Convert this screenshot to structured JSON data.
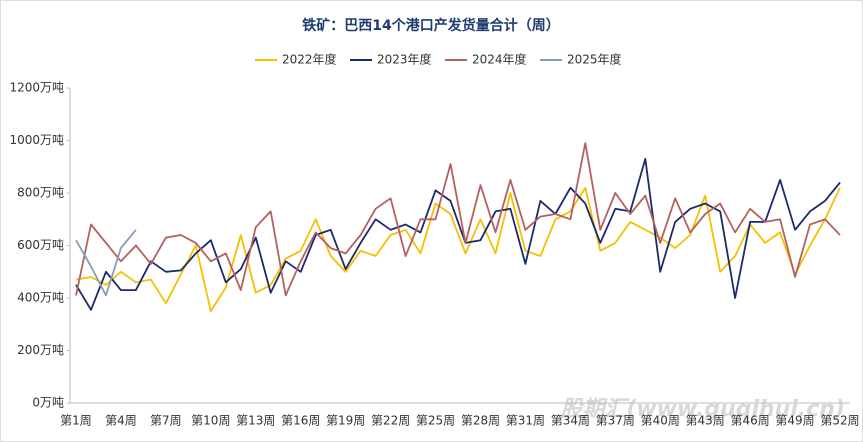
{
  "chart_data": {
    "type": "line",
    "title": "铁矿：巴西14个港口产发货量合计（周）",
    "categories": [
      "第1周",
      null,
      null,
      "第4周",
      null,
      null,
      "第7周",
      null,
      null,
      "第10周",
      null,
      null,
      "第13周",
      null,
      null,
      "第16周",
      null,
      null,
      "第19周",
      null,
      null,
      "第22周",
      null,
      null,
      "第25周",
      null,
      null,
      "第28周",
      null,
      null,
      "第31周",
      null,
      null,
      "第34周",
      null,
      null,
      "第37周",
      null,
      null,
      "第40周",
      null,
      null,
      "第43周",
      null,
      null,
      "第46周",
      null,
      null,
      "第49周",
      null,
      null,
      "第52周"
    ],
    "series": [
      {
        "name": "2022年度",
        "color": "#f5c000",
        "values": [
          470,
          480,
          450,
          500,
          460,
          470,
          380,
          490,
          600,
          350,
          440,
          640,
          420,
          450,
          550,
          580,
          700,
          560,
          500,
          580,
          560,
          640,
          660,
          570,
          760,
          720,
          570,
          700,
          570,
          800,
          580,
          560,
          700,
          730,
          820,
          580,
          610,
          690,
          660,
          630,
          590,
          640,
          790,
          500,
          560,
          680,
          610,
          650,
          490,
          600,
          700,
          820
        ]
      },
      {
        "name": "2023年度",
        "color": "#1a2a6c",
        "values": [
          450,
          355,
          500,
          430,
          430,
          540,
          500,
          505,
          570,
          620,
          460,
          510,
          630,
          420,
          540,
          500,
          640,
          660,
          510,
          610,
          700,
          660,
          680,
          650,
          810,
          770,
          610,
          620,
          730,
          740,
          530,
          770,
          720,
          820,
          760,
          610,
          740,
          730,
          930,
          500,
          690,
          740,
          760,
          730,
          400,
          690,
          690,
          850,
          660,
          730,
          770,
          840
        ]
      },
      {
        "name": "2024年度",
        "color": "#b5605e",
        "values": [
          410,
          680,
          610,
          540,
          600,
          530,
          630,
          640,
          610,
          540,
          570,
          430,
          670,
          730,
          410,
          540,
          650,
          590,
          570,
          640,
          740,
          780,
          560,
          700,
          700,
          910,
          610,
          830,
          650,
          850,
          660,
          710,
          720,
          700,
          990,
          660,
          800,
          720,
          790,
          610,
          780,
          650,
          720,
          760,
          650,
          740,
          690,
          700,
          480,
          680,
          700,
          640
        ]
      },
      {
        "name": "2025年度",
        "color": "#8a9bb8",
        "values": [
          620,
          520,
          410,
          590,
          660,
          null,
          null,
          null,
          null,
          null,
          null,
          null,
          null,
          null,
          null,
          null,
          null,
          null,
          null,
          null,
          null,
          null,
          null,
          null,
          null,
          null,
          null,
          null,
          null,
          null,
          null,
          null,
          null,
          null,
          null,
          null,
          null,
          null,
          null,
          null,
          null,
          null,
          null,
          null,
          null,
          null,
          null,
          null,
          null,
          null,
          null,
          null
        ]
      }
    ],
    "ylim": [
      0,
      1200
    ],
    "yticks": [
      {
        "value": 0,
        "label": "0万吨"
      },
      {
        "value": 200,
        "label": "200万吨"
      },
      {
        "value": 400,
        "label": "400万吨"
      },
      {
        "value": 600,
        "label": "600万吨"
      },
      {
        "value": 800,
        "label": "800万吨"
      },
      {
        "value": 1000,
        "label": "1000万吨"
      },
      {
        "value": 1200,
        "label": "1200万吨"
      }
    ],
    "legend": "top",
    "watermark": "股期汇(www.guqihui.cn)"
  }
}
